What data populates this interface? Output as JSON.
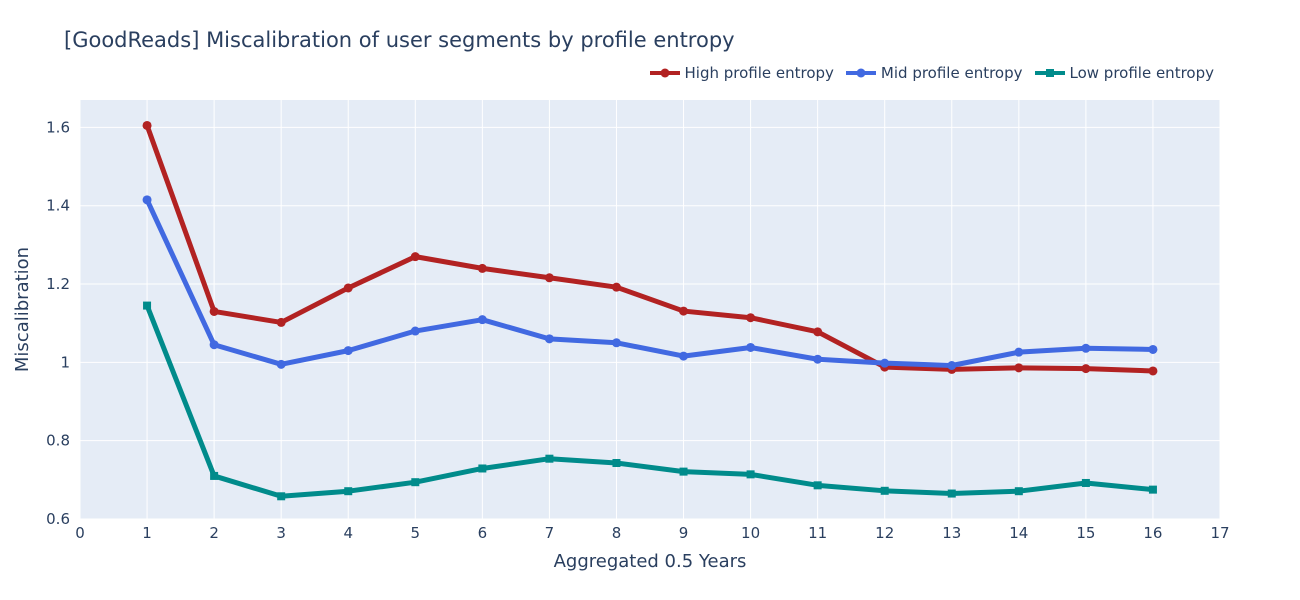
{
  "chart_data": {
    "type": "line",
    "title": "[GoodReads] Miscalibration of user segments by profile entropy",
    "xlabel": "Aggregated 0.5 Years",
    "ylabel": "Miscalibration",
    "xlim": [
      0,
      17
    ],
    "ylim": [
      0.6,
      1.67
    ],
    "x_ticks": [
      0,
      1,
      2,
      3,
      4,
      5,
      6,
      7,
      8,
      9,
      10,
      11,
      12,
      13,
      14,
      15,
      16,
      17
    ],
    "y_ticks": [
      0.6,
      0.8,
      1,
      1.2,
      1.4,
      1.6
    ],
    "y_tick_labels": [
      "0.6",
      "0.8",
      "1",
      "1.2",
      "1.4",
      "1.6"
    ],
    "grid": true,
    "legend_position": "top-right",
    "x": [
      1,
      2,
      3,
      4,
      5,
      6,
      7,
      8,
      9,
      10,
      11,
      12,
      13,
      14,
      15,
      16
    ],
    "series": [
      {
        "name": "High profile entropy",
        "color": "#b22222",
        "marker": "circle",
        "values": [
          1.605,
          1.13,
          1.102,
          1.19,
          1.27,
          1.24,
          1.216,
          1.192,
          1.131,
          1.114,
          1.078,
          0.988,
          0.982,
          0.986,
          0.984,
          0.978
        ]
      },
      {
        "name": "Mid profile entropy",
        "color": "#4169e1",
        "marker": "circle",
        "values": [
          1.415,
          1.045,
          0.995,
          1.03,
          1.08,
          1.109,
          1.06,
          1.05,
          1.016,
          1.038,
          1.008,
          0.998,
          0.992,
          1.026,
          1.036,
          1.033
        ]
      },
      {
        "name": "Low profile entropy",
        "color": "#008b8b",
        "marker": "square",
        "values": [
          1.145,
          0.71,
          0.658,
          0.671,
          0.694,
          0.729,
          0.754,
          0.743,
          0.721,
          0.714,
          0.686,
          0.672,
          0.665,
          0.671,
          0.692,
          0.675
        ]
      }
    ]
  }
}
